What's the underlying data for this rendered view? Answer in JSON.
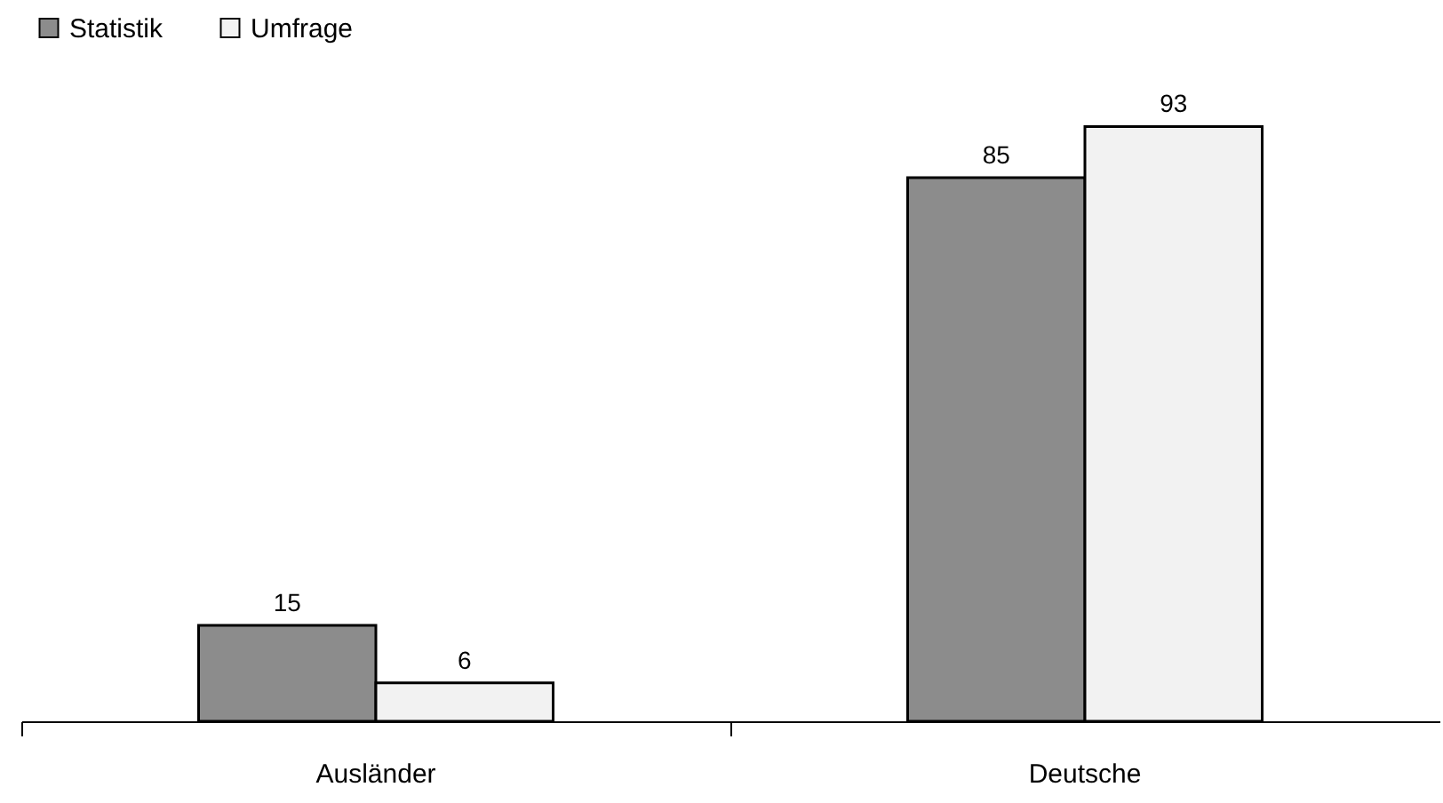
{
  "chart_data": {
    "type": "bar",
    "categories": [
      "Ausländer",
      "Deutsche"
    ],
    "series": [
      {
        "name": "Statistik",
        "color": "#8c8c8c",
        "values": [
          15,
          85
        ]
      },
      {
        "name": "Umfrage",
        "color": "#f2f2f2",
        "values": [
          6,
          93
        ]
      }
    ],
    "data_labels": true,
    "legend": "top left"
  }
}
